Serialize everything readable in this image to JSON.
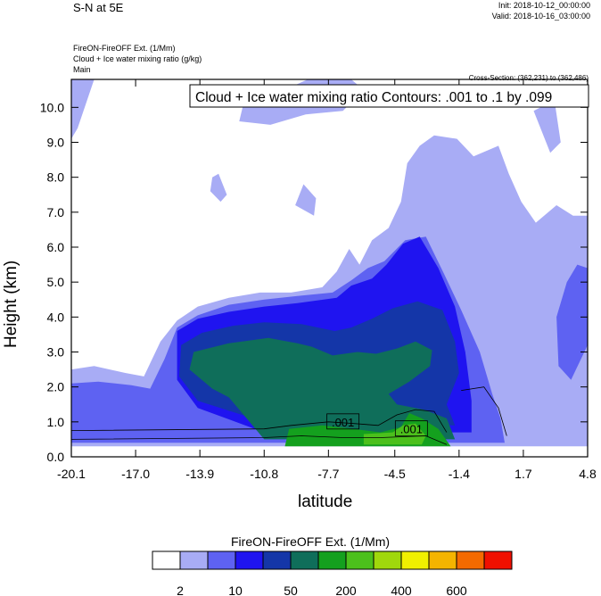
{
  "header": {
    "title": "S-N at 5E",
    "init": "Init: 2018-10-12_00:00:00",
    "valid": "Valid: 2018-10-16_03:00:00",
    "field_line_1": "FireON-FireOFF Ext.   (1/Mm)",
    "field_line_2": "Cloud + Ice water mixing ratio   (g/kg)",
    "field_line_3": "Main",
    "cross_section": "Cross-Section: (362,231) to (362,486)"
  },
  "chart_data": {
    "type": "heatmap",
    "title": "",
    "contour_label": "Cloud + Ice water mixing ratio Contours: .001 to .1 by .099",
    "xlabel": "latitude",
    "ylabel": "Height (km)",
    "xlim": [
      -20.1,
      4.8
    ],
    "ylim": [
      0.0,
      10.8
    ],
    "x_ticks": [
      -20.1,
      -17.0,
      -13.9,
      -10.8,
      -7.7,
      -4.5,
      -1.4,
      1.7,
      4.8
    ],
    "x_tick_labels": [
      "-20.1",
      "-17.0",
      "-13.9",
      "-10.8",
      "-7.7",
      "-4.5",
      "-1.4",
      "1.7",
      "4.8"
    ],
    "y_ticks": [
      0,
      1,
      2,
      3,
      4,
      5,
      6,
      7,
      8,
      9,
      10
    ],
    "y_tick_labels": [
      "0.0",
      "1.0",
      "2.0",
      "3.0",
      "4.0",
      "5.0",
      "6.0",
      "7.0",
      "8.0",
      "9.0",
      "10.0"
    ],
    "contour_value_labels": [
      {
        "text": ".001",
        "x": -7.0,
        "y": 1.0
      },
      {
        "text": ".001",
        "x": -3.7,
        "y": 0.8
      }
    ],
    "colorbar": {
      "title": "FireON-FireOFF Ext.  (1/Mm)",
      "colors": [
        "#ffffff",
        "#a8acf5",
        "#5e62f2",
        "#1f14f0",
        "#1436a8",
        "#0f6e5a",
        "#14a01e",
        "#4cc01c",
        "#a0d80c",
        "#f0f000",
        "#f4b400",
        "#f46a00",
        "#f01000"
      ],
      "tick_labels": [
        "2",
        "10",
        "50",
        "200",
        "400",
        "600"
      ]
    },
    "regions": [
      {
        "level": 1,
        "points": [
          [
            -20.1,
            0.8
          ],
          [
            -20.1,
            2.5
          ],
          [
            -19.0,
            2.6
          ],
          [
            -17.5,
            2.4
          ],
          [
            -16.6,
            2.3
          ],
          [
            -15.8,
            3.3
          ],
          [
            -15.0,
            3.9
          ],
          [
            -14.0,
            4.3
          ],
          [
            -12.5,
            4.55
          ],
          [
            -11.0,
            4.7
          ],
          [
            -9.5,
            4.7
          ],
          [
            -8.0,
            4.85
          ],
          [
            -7.3,
            5.3
          ],
          [
            -6.7,
            5.95
          ],
          [
            -6.2,
            5.5
          ],
          [
            -5.6,
            6.2
          ],
          [
            -4.8,
            6.55
          ],
          [
            -4.2,
            7.3
          ],
          [
            -3.9,
            8.4
          ],
          [
            -3.3,
            8.9
          ],
          [
            -2.6,
            9.2
          ],
          [
            -1.5,
            9.1
          ],
          [
            -0.7,
            8.6
          ],
          [
            0.5,
            8.9
          ],
          [
            1.0,
            8.1
          ],
          [
            1.6,
            7.3
          ],
          [
            2.3,
            6.7
          ],
          [
            3.3,
            7.2
          ],
          [
            4.1,
            6.9
          ],
          [
            4.8,
            6.9
          ],
          [
            4.8,
            0.3
          ],
          [
            -20.1,
            0.3
          ]
        ]
      },
      {
        "level": 1,
        "points": [
          [
            -11.8,
            10.1
          ],
          [
            -10.2,
            10.4
          ],
          [
            -8.7,
            10.8
          ],
          [
            -6.6,
            10.8
          ],
          [
            -6.0,
            10.5
          ],
          [
            -7.0,
            9.9
          ],
          [
            -8.8,
            9.8
          ],
          [
            -10.5,
            9.5
          ],
          [
            -12.0,
            9.6
          ]
        ]
      },
      {
        "level": 1,
        "points": [
          [
            -13.0,
            8.1
          ],
          [
            -12.6,
            7.5
          ],
          [
            -12.9,
            7.3
          ],
          [
            -13.4,
            7.6
          ],
          [
            -13.3,
            8.0
          ]
        ]
      },
      {
        "level": 1,
        "points": [
          [
            -9.3,
            7.2
          ],
          [
            -8.4,
            6.9
          ],
          [
            -8.3,
            7.4
          ],
          [
            -8.9,
            7.8
          ]
        ]
      },
      {
        "level": 1,
        "points": [
          [
            -20.1,
            10.8
          ],
          [
            -19.0,
            10.8
          ],
          [
            -19.8,
            9.4
          ],
          [
            -20.1,
            9.1
          ]
        ]
      },
      {
        "level": 1,
        "points": [
          [
            2.2,
            9.9
          ],
          [
            3.0,
            8.7
          ],
          [
            3.5,
            9.0
          ],
          [
            3.2,
            10.2
          ]
        ]
      },
      {
        "level": 2,
        "points": [
          [
            -20.1,
            0.9
          ],
          [
            -20.1,
            2.1
          ],
          [
            -18.8,
            2.15
          ],
          [
            -17.2,
            2.05
          ],
          [
            -16.3,
            1.95
          ],
          [
            -15.6,
            2.8
          ],
          [
            -15.0,
            3.7
          ],
          [
            -14.0,
            4.05
          ],
          [
            -12.5,
            4.35
          ],
          [
            -10.8,
            4.5
          ],
          [
            -9.2,
            4.6
          ],
          [
            -7.5,
            4.7
          ],
          [
            -6.6,
            5.05
          ],
          [
            -5.8,
            5.4
          ],
          [
            -5.0,
            5.6
          ],
          [
            -4.0,
            6.2
          ],
          [
            -3.0,
            6.3
          ],
          [
            -2.1,
            5.2
          ],
          [
            -1.3,
            4.2
          ],
          [
            -0.4,
            3.0
          ],
          [
            0.2,
            1.8
          ],
          [
            0.6,
            1.1
          ],
          [
            0.8,
            0.4
          ],
          [
            -20.1,
            0.4
          ]
        ]
      },
      {
        "level": 2,
        "points": [
          [
            3.3,
            4.0
          ],
          [
            3.8,
            5.0
          ],
          [
            4.3,
            5.5
          ],
          [
            4.8,
            5.4
          ],
          [
            4.8,
            3.2
          ],
          [
            4.0,
            2.2
          ],
          [
            3.4,
            2.6
          ]
        ]
      },
      {
        "level": 3,
        "points": [
          [
            -15.0,
            3.6
          ],
          [
            -14.0,
            3.95
          ],
          [
            -12.5,
            4.15
          ],
          [
            -10.8,
            4.3
          ],
          [
            -9.2,
            4.4
          ],
          [
            -7.3,
            4.55
          ],
          [
            -6.6,
            4.9
          ],
          [
            -5.6,
            5.1
          ],
          [
            -4.9,
            5.5
          ],
          [
            -4.1,
            6.1
          ],
          [
            -3.3,
            6.3
          ],
          [
            -2.4,
            5.4
          ],
          [
            -1.6,
            4.3
          ],
          [
            -1.1,
            3.0
          ],
          [
            -0.8,
            1.6
          ],
          [
            -0.8,
            0.7
          ],
          [
            -10.8,
            0.7
          ],
          [
            -14.0,
            1.4
          ],
          [
            -15.0,
            2.2
          ]
        ]
      },
      {
        "level": 4,
        "points": [
          [
            -14.8,
            3.2
          ],
          [
            -13.8,
            3.55
          ],
          [
            -12.3,
            3.75
          ],
          [
            -10.8,
            3.85
          ],
          [
            -9.0,
            3.8
          ],
          [
            -7.4,
            3.6
          ],
          [
            -6.6,
            3.7
          ],
          [
            -5.6,
            3.95
          ],
          [
            -4.6,
            4.25
          ],
          [
            -3.4,
            4.45
          ],
          [
            -2.2,
            4.2
          ],
          [
            -1.6,
            3.3
          ],
          [
            -1.4,
            2.4
          ],
          [
            -2.0,
            1.5
          ],
          [
            -1.6,
            0.9
          ],
          [
            -10.8,
            1.0
          ],
          [
            -14.0,
            1.6
          ],
          [
            -14.9,
            2.3
          ]
        ]
      },
      {
        "level": 5,
        "points": [
          [
            -14.2,
            3.0
          ],
          [
            -12.5,
            3.25
          ],
          [
            -10.6,
            3.4
          ],
          [
            -9.2,
            3.25
          ],
          [
            -8.5,
            3.15
          ],
          [
            -7.5,
            2.9
          ],
          [
            -6.3,
            3.0
          ],
          [
            -5.4,
            2.95
          ],
          [
            -4.4,
            3.1
          ],
          [
            -3.5,
            3.3
          ],
          [
            -2.7,
            3.05
          ],
          [
            -2.8,
            2.6
          ],
          [
            -3.8,
            2.15
          ],
          [
            -4.8,
            1.8
          ],
          [
            -4.4,
            1.5
          ],
          [
            -3.1,
            1.35
          ],
          [
            -2.0,
            1.1
          ],
          [
            -1.6,
            0.5
          ],
          [
            -10.8,
            0.5
          ],
          [
            -12.5,
            1.7
          ],
          [
            -13.3,
            1.95
          ],
          [
            -14.4,
            2.5
          ]
        ]
      },
      {
        "level": 6,
        "points": [
          [
            -9.6,
            0.8
          ],
          [
            -8.0,
            0.9
          ],
          [
            -6.5,
            0.8
          ],
          [
            -5.2,
            0.7
          ],
          [
            -4.2,
            0.85
          ],
          [
            -3.8,
            1.25
          ],
          [
            -3.2,
            1.1
          ],
          [
            -2.4,
            0.8
          ],
          [
            -1.8,
            0.3
          ],
          [
            -9.8,
            0.3
          ]
        ]
      },
      {
        "level": 7,
        "points": [
          [
            -6.0,
            0.65
          ],
          [
            -4.6,
            0.7
          ],
          [
            -4.1,
            0.9
          ],
          [
            -3.5,
            0.95
          ],
          [
            -3.0,
            0.6
          ],
          [
            -3.2,
            0.35
          ],
          [
            -6.0,
            0.35
          ]
        ]
      }
    ]
  }
}
